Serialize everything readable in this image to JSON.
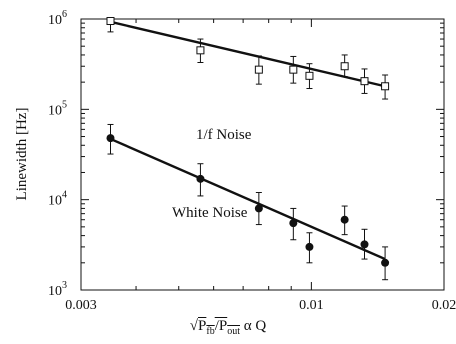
{
  "chart_data": {
    "type": "scatter",
    "title": "",
    "xlabel": {
      "radical": "√",
      "p1": "P",
      "s1": "fb",
      "slash": "/P",
      "s2": "out",
      "rest": " α Q"
    },
    "ylabel": "Linewidth [Hz]",
    "x_scale": "log",
    "y_scale": "log",
    "xlim": [
      0.003,
      0.02
    ],
    "ylim": [
      1000,
      1000000
    ],
    "x_tick_labels": [
      {
        "value": 0.003,
        "label": "0.003"
      },
      {
        "value": 0.01,
        "label": "0.01"
      },
      {
        "value": 0.02,
        "label": "0.02"
      }
    ],
    "y_tick_labels": [
      {
        "value": 1000,
        "base": "10",
        "exp": "3"
      },
      {
        "value": 10000,
        "base": "10",
        "exp": "4"
      },
      {
        "value": 100000,
        "base": "10",
        "exp": "5"
      },
      {
        "value": 1000000,
        "base": "10",
        "exp": "6"
      }
    ],
    "grid": false,
    "series": [
      {
        "name": "1/f Noise",
        "marker": "open-square",
        "fit": {
          "x": [
            0.0035,
            0.0147
          ],
          "y": [
            930000,
            180000
          ]
        },
        "points": [
          {
            "x": 0.0035,
            "y": 950000,
            "lo": 720000,
            "hi": 1000000
          },
          {
            "x": 0.0056,
            "y": 450000,
            "lo": 330000,
            "hi": 600000
          },
          {
            "x": 0.0076,
            "y": 275000,
            "lo": 190000,
            "hi": 390000
          },
          {
            "x": 0.0091,
            "y": 275000,
            "lo": 195000,
            "hi": 385000
          },
          {
            "x": 0.0099,
            "y": 235000,
            "lo": 170000,
            "hi": 320000
          },
          {
            "x": 0.0119,
            "y": 300000,
            "lo": 230000,
            "hi": 400000
          },
          {
            "x": 0.0132,
            "y": 205000,
            "lo": 150000,
            "hi": 280000
          },
          {
            "x": 0.0147,
            "y": 180000,
            "lo": 130000,
            "hi": 240000
          }
        ]
      },
      {
        "name": "White Noise",
        "marker": "filled-circle",
        "fit": {
          "x": [
            0.0035,
            0.0147
          ],
          "y": [
            47000,
            2200
          ]
        },
        "points": [
          {
            "x": 0.0035,
            "y": 48000,
            "lo": 32000,
            "hi": 68000
          },
          {
            "x": 0.0056,
            "y": 17000,
            "lo": 11000,
            "hi": 25000
          },
          {
            "x": 0.0076,
            "y": 8000,
            "lo": 5300,
            "hi": 12000
          },
          {
            "x": 0.0091,
            "y": 5500,
            "lo": 3600,
            "hi": 8000
          },
          {
            "x": 0.0099,
            "y": 3000,
            "lo": 2000,
            "hi": 4300
          },
          {
            "x": 0.0119,
            "y": 6000,
            "lo": 4100,
            "hi": 8500
          },
          {
            "x": 0.0132,
            "y": 3200,
            "lo": 2200,
            "hi": 4700
          },
          {
            "x": 0.0147,
            "y": 2000,
            "lo": 1300,
            "hi": 3000
          }
        ]
      }
    ]
  }
}
